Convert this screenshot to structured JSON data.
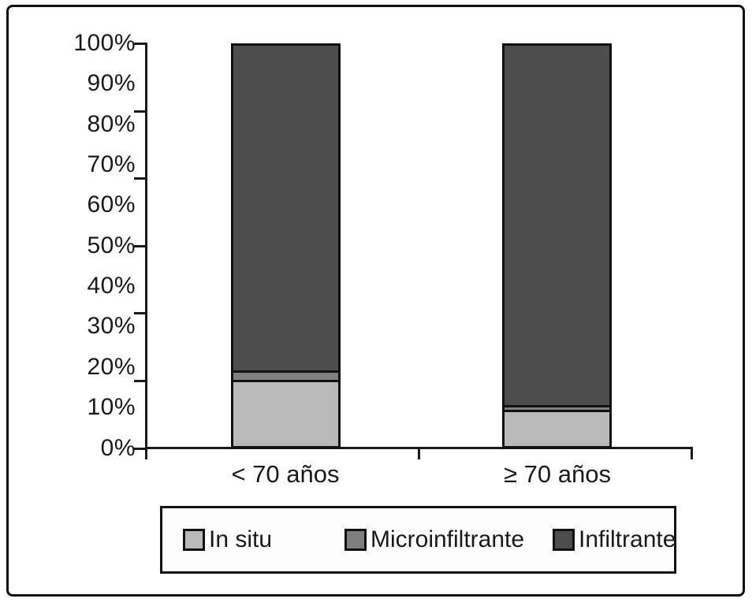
{
  "chart_data": {
    "type": "bar",
    "subtype": "stacked-100-percent",
    "title": "",
    "xlabel": "",
    "ylabel": "",
    "categories": [
      "< 70 años",
      "≥ 70 años"
    ],
    "series": [
      {
        "name": "In situ",
        "color": "#b9b9b9",
        "values": [
          16.6,
          9.0
        ]
      },
      {
        "name": "Microinfiltrante",
        "color": "#7f7f7f",
        "values": [
          2.3,
          1.3
        ]
      },
      {
        "name": "Infiltrante",
        "color": "#4d4d4d",
        "values": [
          81.1,
          89.7
        ]
      }
    ],
    "y_axis": {
      "range": [
        0,
        100
      ],
      "unit": "%",
      "tick_labels": [
        "0%",
        "10%",
        "20%",
        "30%",
        "40%",
        "50%",
        "60%",
        "70%",
        "80%",
        "90%",
        "100%"
      ],
      "minor_tick_count": 7
    },
    "grid": "off",
    "legend": {
      "position": "bottom",
      "labels": [
        "In situ",
        "Microinfiltrante",
        "Infiltrante"
      ]
    },
    "colors": {
      "axis": "#1a1a1a",
      "border": "#111111",
      "background": "#ffffff"
    }
  }
}
